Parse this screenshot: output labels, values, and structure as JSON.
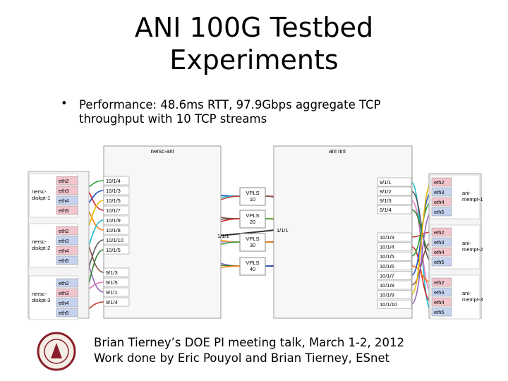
{
  "title": [
    "ANI 100G Testbed",
    "Experiments"
  ],
  "bullet": [
    "Performance: 48.6ms RTT, 97.9Gbps aggregate TCP",
    "throughput with 10 TCP streams"
  ],
  "diagram": {
    "left_site": "nersc-ani",
    "right_site": "ani nni",
    "left_hosts": [
      {
        "name": [
          "nersc-",
          "diskpt-1"
        ],
        "ports": [
          "eth2",
          "eth3",
          "eth4",
          "eth5"
        ]
      },
      {
        "name": [
          "nersc-",
          "diskpt-2"
        ],
        "ports": [
          "eth2",
          "eth3",
          "eth4",
          "eth5"
        ]
      },
      {
        "name": [
          "nersc-",
          "diskpt-3"
        ],
        "ports": [
          "eth2",
          "eth3",
          "eth4",
          "eth5"
        ]
      }
    ],
    "left_switch_ports": [
      "10/1/4",
      "10/1/3",
      "10/1/5",
      "10/1/7",
      "10/1/9",
      "10/1/8",
      "10/1/10",
      "10/1/5",
      "9/1/3",
      "9/1/5",
      "9/1/1",
      "9/1/4"
    ],
    "vpls": [
      [
        "VPLS",
        "10"
      ],
      [
        "VPLS",
        "20"
      ],
      [
        "VPLS",
        "30"
      ],
      [
        "VPLS",
        "40"
      ]
    ],
    "trunk_ports": [
      "1/1/1",
      "1/1/1"
    ],
    "right_switch_ports": [
      "9/1/1",
      "9/1/2",
      "9/1/3",
      "9/1/4",
      "10/1/3",
      "10/1/4",
      "10/1/5",
      "10/1/6",
      "10/1/7",
      "10/1/8",
      "10/1/9",
      "10/1/10"
    ],
    "right_hosts": [
      {
        "name": [
          "ani-",
          "mempt-1"
        ],
        "ports": [
          "eth2",
          "eth3",
          "eth4",
          "eth5"
        ]
      },
      {
        "name": [
          "ani-",
          "mempt-2"
        ],
        "ports": [
          "eth2",
          "eth3",
          "eth4",
          "eth5"
        ]
      },
      {
        "name": [
          "ani-",
          "mempt-3"
        ],
        "ports": [
          "eth2",
          "eth3",
          "eth4",
          "eth5"
        ]
      }
    ]
  },
  "footer": [
    "Brian Tierney’s DOE PI meeting talk, March 1-2, 2012",
    "Work done by Eric Pouyol and Brian Tierney, ESnet"
  ]
}
